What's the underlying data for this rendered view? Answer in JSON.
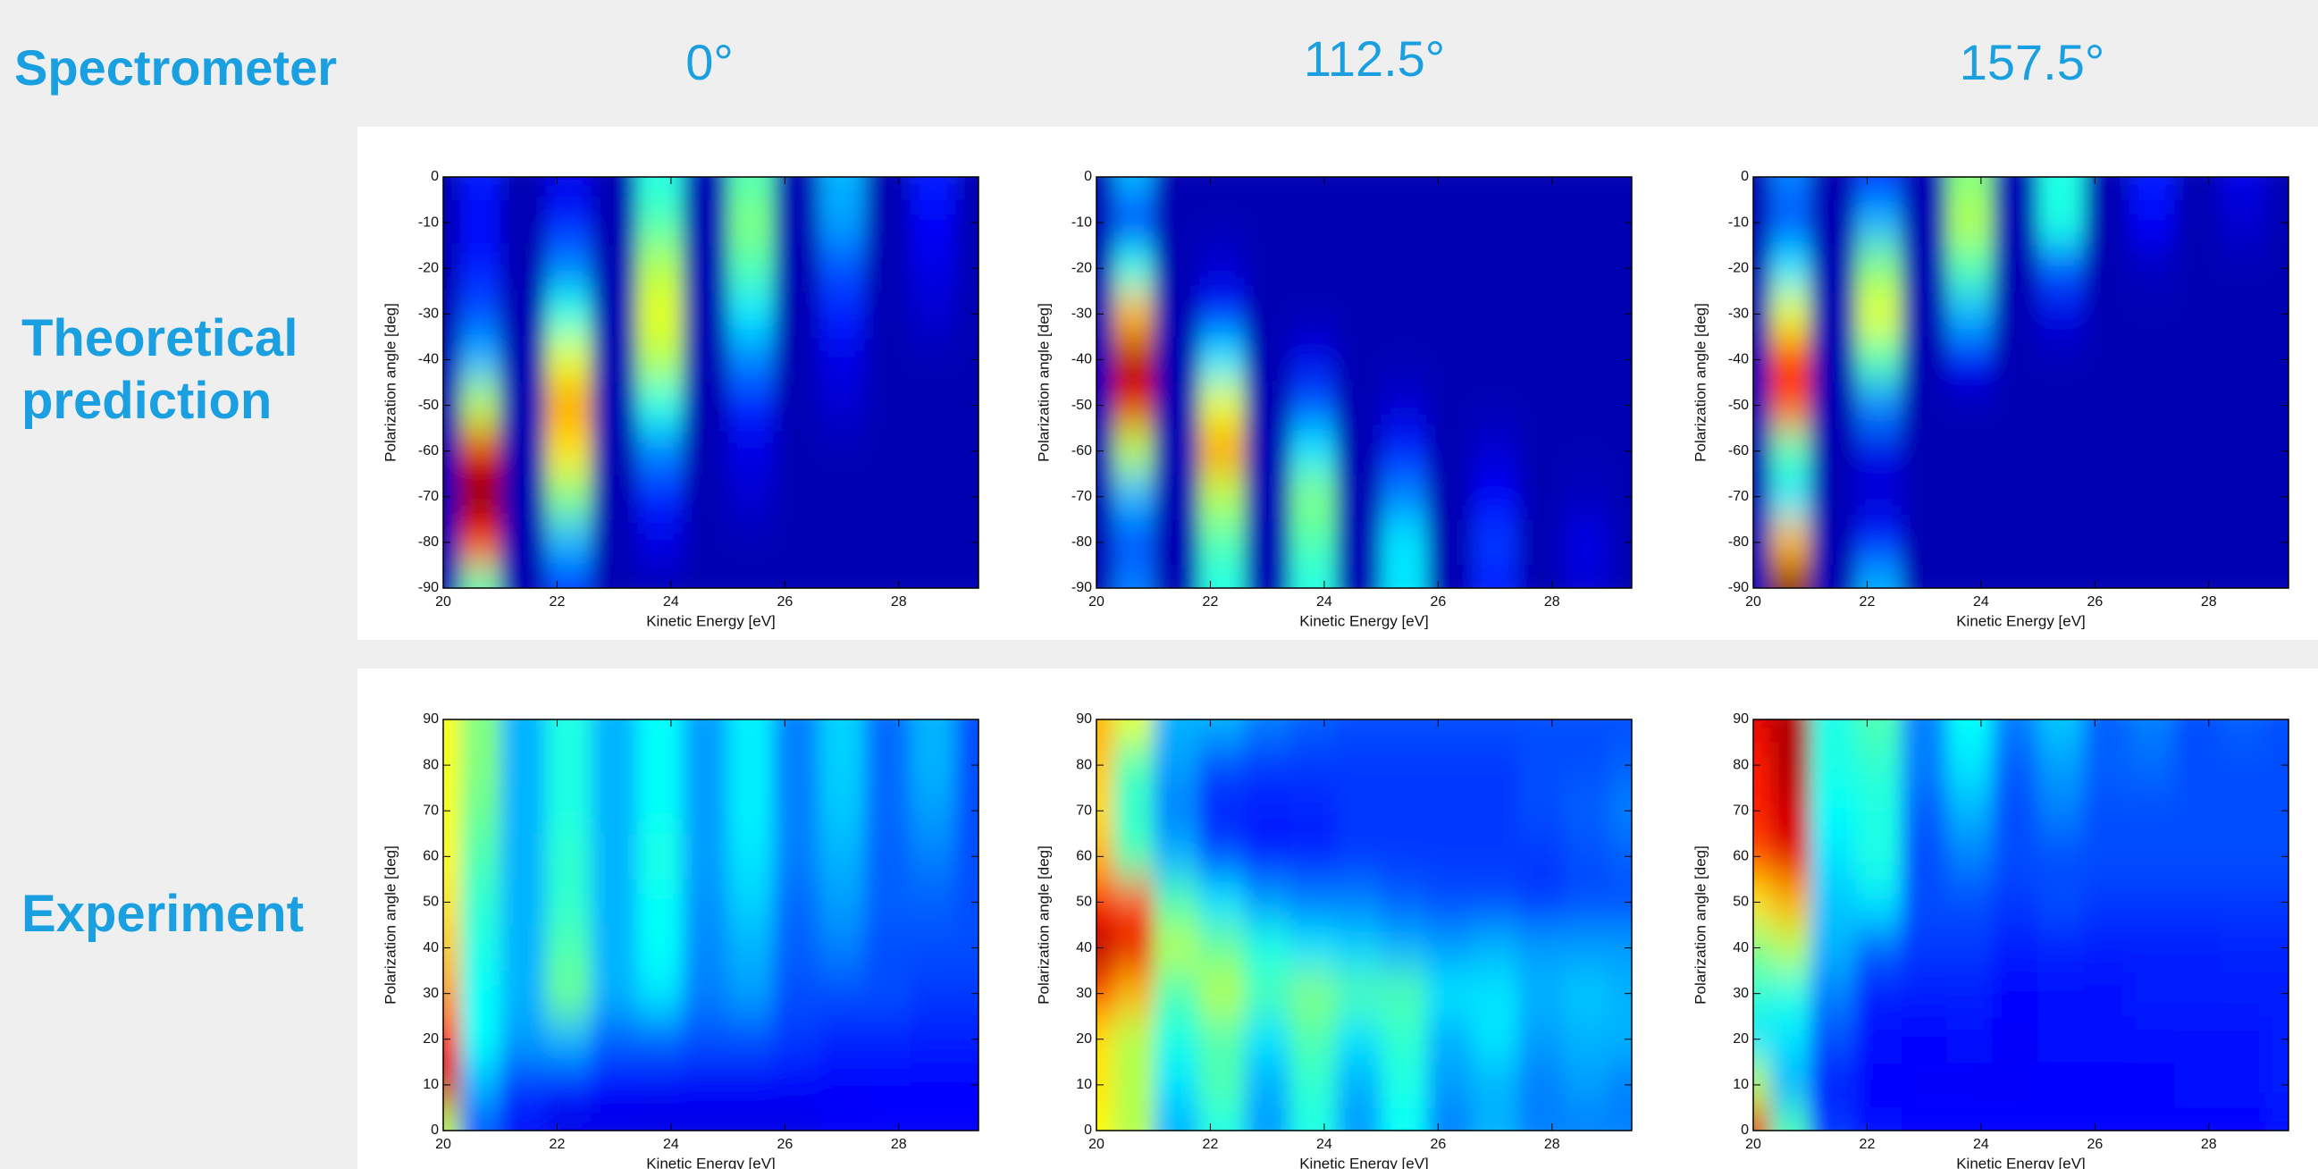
{
  "header": {
    "title": "Spectrometer",
    "columns": [
      "0°",
      "112.5°",
      "157.5°"
    ]
  },
  "rows": [
    "Theoretical prediction",
    "Experiment"
  ],
  "chart_data": [
    {
      "type": "heatmap",
      "colormap": "jet",
      "xlabel": "Kinetic Energy [eV]",
      "ylabel": "Polarization angle [deg]",
      "x": [
        20,
        20.6,
        21.4,
        22.2,
        23,
        23.8,
        24.6,
        25.4,
        26.2,
        27,
        27.8,
        28.6,
        29.4
      ],
      "y": [
        0,
        -10,
        -20,
        -30,
        -40,
        -50,
        -60,
        -70,
        -80,
        -90
      ],
      "values": [
        [
          0.05,
          0.15,
          0.05,
          0.1,
          0.05,
          0.4,
          0.05,
          0.45,
          0.05,
          0.3,
          0.05,
          0.15,
          0.05
        ],
        [
          0.05,
          0.12,
          0.05,
          0.15,
          0.05,
          0.45,
          0.05,
          0.5,
          0.05,
          0.28,
          0.05,
          0.12,
          0.05
        ],
        [
          0.05,
          0.15,
          0.05,
          0.25,
          0.05,
          0.55,
          0.05,
          0.45,
          0.05,
          0.2,
          0.05,
          0.1,
          0.05
        ],
        [
          0.05,
          0.2,
          0.05,
          0.4,
          0.05,
          0.6,
          0.05,
          0.35,
          0.05,
          0.15,
          0.05,
          0.08,
          0.05
        ],
        [
          0.05,
          0.3,
          0.05,
          0.6,
          0.05,
          0.55,
          0.05,
          0.25,
          0.05,
          0.1,
          0.05,
          0.05,
          0.05
        ],
        [
          0.05,
          0.55,
          0.05,
          0.72,
          0.05,
          0.4,
          0.05,
          0.15,
          0.05,
          0.08,
          0.05,
          0.05,
          0.05
        ],
        [
          0.05,
          0.9,
          0.05,
          0.65,
          0.05,
          0.25,
          0.05,
          0.1,
          0.05,
          0.05,
          0.05,
          0.05,
          0.05
        ],
        [
          0.05,
          1,
          0.05,
          0.5,
          0.05,
          0.15,
          0.05,
          0.08,
          0.05,
          0.05,
          0.05,
          0.05,
          0.05
        ],
        [
          0.05,
          0.85,
          0.05,
          0.3,
          0.05,
          0.1,
          0.05,
          0.05,
          0.05,
          0.05,
          0.05,
          0.05,
          0.05
        ],
        [
          0.05,
          0.45,
          0.05,
          0.15,
          0.05,
          0.05,
          0.05,
          0.05,
          0.05,
          0.05,
          0.05,
          0.05,
          0.05
        ]
      ],
      "xlim": [
        20,
        29.4
      ],
      "ylim": [
        -90,
        0
      ],
      "xticks": [
        20,
        22,
        24,
        26,
        28
      ],
      "yticks": [
        0,
        -10,
        -20,
        -30,
        -40,
        -50,
        -60,
        -70,
        -80,
        -90
      ]
    },
    {
      "type": "heatmap",
      "colormap": "jet",
      "xlabel": "Kinetic Energy [eV]",
      "ylabel": "Polarization angle [deg]",
      "x": [
        20,
        20.6,
        21.4,
        22.2,
        23,
        23.8,
        24.6,
        25.4,
        26.2,
        27,
        27.8,
        28.6,
        29.4
      ],
      "y": [
        0,
        -10,
        -20,
        -30,
        -40,
        -50,
        -60,
        -70,
        -80,
        -90
      ],
      "values": [
        [
          0.05,
          0.3,
          0.05,
          0.05,
          0.05,
          0.05,
          0.05,
          0.05,
          0.05,
          0.05,
          0.05,
          0.05,
          0.05
        ],
        [
          0.05,
          0.15,
          0.05,
          0.05,
          0.05,
          0.05,
          0.05,
          0.05,
          0.05,
          0.05,
          0.05,
          0.05,
          0.05
        ],
        [
          0.05,
          0.4,
          0.05,
          0.08,
          0.05,
          0.05,
          0.05,
          0.05,
          0.05,
          0.05,
          0.05,
          0.05,
          0.05
        ],
        [
          0.05,
          0.7,
          0.05,
          0.15,
          0.05,
          0.05,
          0.05,
          0.05,
          0.05,
          0.05,
          0.05,
          0.05,
          0.05
        ],
        [
          0.05,
          0.95,
          0.05,
          0.35,
          0.05,
          0.1,
          0.05,
          0.05,
          0.05,
          0.05,
          0.05,
          0.05,
          0.05
        ],
        [
          0.05,
          0.9,
          0.05,
          0.6,
          0.05,
          0.2,
          0.05,
          0.08,
          0.05,
          0.05,
          0.05,
          0.05,
          0.05
        ],
        [
          0.05,
          0.55,
          0.05,
          0.72,
          0.05,
          0.35,
          0.05,
          0.15,
          0.05,
          0.08,
          0.05,
          0.05,
          0.05
        ],
        [
          0.05,
          0.3,
          0.05,
          0.55,
          0.05,
          0.5,
          0.05,
          0.25,
          0.05,
          0.12,
          0.05,
          0.06,
          0.05
        ],
        [
          0.05,
          0.2,
          0.05,
          0.45,
          0.05,
          0.45,
          0.05,
          0.35,
          0.05,
          0.18,
          0.05,
          0.1,
          0.05
        ],
        [
          0.05,
          0.25,
          0.05,
          0.4,
          0.05,
          0.4,
          0.05,
          0.35,
          0.05,
          0.15,
          0.05,
          0.08,
          0.05
        ]
      ],
      "xlim": [
        20,
        29.4
      ],
      "ylim": [
        -90,
        0
      ],
      "xticks": [
        20,
        22,
        24,
        26,
        28
      ],
      "yticks": [
        0,
        -10,
        -20,
        -30,
        -40,
        -50,
        -60,
        -70,
        -80,
        -90
      ]
    },
    {
      "type": "heatmap",
      "colormap": "jet",
      "xlabel": "Kinetic Energy [eV]",
      "ylabel": "Polarization angle [deg]",
      "x": [
        20,
        20.6,
        21.4,
        22.2,
        23,
        23.8,
        24.6,
        25.4,
        26.2,
        27,
        27.8,
        28.6,
        29.4
      ],
      "y": [
        0,
        -10,
        -20,
        -30,
        -40,
        -50,
        -60,
        -70,
        -80,
        -90
      ],
      "values": [
        [
          0.05,
          0.25,
          0.05,
          0.15,
          0.05,
          0.5,
          0.05,
          0.4,
          0.05,
          0.15,
          0.05,
          0.1,
          0.05
        ],
        [
          0.05,
          0.2,
          0.05,
          0.3,
          0.05,
          0.55,
          0.05,
          0.4,
          0.05,
          0.12,
          0.05,
          0.08,
          0.05
        ],
        [
          0.05,
          0.35,
          0.05,
          0.5,
          0.05,
          0.45,
          0.05,
          0.2,
          0.05,
          0.06,
          0.05,
          0.05,
          0.05
        ],
        [
          0.05,
          0.6,
          0.05,
          0.6,
          0.05,
          0.3,
          0.05,
          0.1,
          0.05,
          0.05,
          0.05,
          0.05,
          0.05
        ],
        [
          0.05,
          0.85,
          0.05,
          0.45,
          0.05,
          0.12,
          0.05,
          0.05,
          0.05,
          0.05,
          0.05,
          0.05,
          0.05
        ],
        [
          0.05,
          0.8,
          0.05,
          0.25,
          0.05,
          0.05,
          0.05,
          0.05,
          0.05,
          0.05,
          0.05,
          0.05,
          0.05
        ],
        [
          0.05,
          0.45,
          0.05,
          0.1,
          0.05,
          0.05,
          0.05,
          0.05,
          0.05,
          0.05,
          0.05,
          0.05,
          0.05
        ],
        [
          0.05,
          0.35,
          0.05,
          0.08,
          0.05,
          0.05,
          0.05,
          0.05,
          0.05,
          0.05,
          0.05,
          0.05,
          0.05
        ],
        [
          0.05,
          0.7,
          0.05,
          0.15,
          0.05,
          0.05,
          0.05,
          0.05,
          0.05,
          0.05,
          0.05,
          0.05,
          0.05
        ],
        [
          0.05,
          1,
          0.05,
          0.3,
          0.05,
          0.05,
          0.05,
          0.05,
          0.05,
          0.05,
          0.05,
          0.05,
          0.05
        ]
      ],
      "xlim": [
        20,
        29.4
      ],
      "ylim": [
        -90,
        0
      ],
      "xticks": [
        20,
        22,
        24,
        26,
        28
      ],
      "yticks": [
        0,
        -10,
        -20,
        -30,
        -40,
        -50,
        -60,
        -70,
        -80,
        -90
      ]
    },
    {
      "type": "heatmap",
      "colormap": "jet",
      "xlabel": "Kinetic Energy [eV]",
      "ylabel": "Polarization angle [deg]",
      "x": [
        20,
        20.6,
        21.4,
        22.2,
        23,
        23.8,
        24.6,
        25.4,
        26.2,
        27,
        27.8,
        28.6,
        29.4
      ],
      "y": [
        90,
        80,
        70,
        60,
        50,
        40,
        30,
        20,
        10,
        0
      ],
      "values": [
        [
          0.62,
          0.5,
          0.3,
          0.4,
          0.3,
          0.38,
          0.28,
          0.36,
          0.25,
          0.33,
          0.23,
          0.3,
          0.2
        ],
        [
          0.62,
          0.5,
          0.3,
          0.4,
          0.3,
          0.38,
          0.28,
          0.36,
          0.25,
          0.33,
          0.23,
          0.3,
          0.2
        ],
        [
          0.62,
          0.48,
          0.3,
          0.4,
          0.3,
          0.38,
          0.28,
          0.36,
          0.25,
          0.32,
          0.23,
          0.28,
          0.2
        ],
        [
          0.63,
          0.45,
          0.3,
          0.42,
          0.3,
          0.4,
          0.28,
          0.35,
          0.25,
          0.3,
          0.22,
          0.25,
          0.2
        ],
        [
          0.65,
          0.42,
          0.3,
          0.42,
          0.3,
          0.38,
          0.27,
          0.33,
          0.23,
          0.28,
          0.22,
          0.22,
          0.2
        ],
        [
          0.68,
          0.4,
          0.3,
          0.45,
          0.3,
          0.38,
          0.26,
          0.3,
          0.22,
          0.25,
          0.2,
          0.2,
          0.2
        ],
        [
          0.72,
          0.38,
          0.3,
          0.48,
          0.3,
          0.35,
          0.25,
          0.28,
          0.2,
          0.2,
          0.2,
          0.18,
          0.18
        ],
        [
          0.85,
          0.38,
          0.28,
          0.3,
          0.22,
          0.22,
          0.2,
          0.2,
          0.18,
          0.16,
          0.16,
          0.15,
          0.15
        ],
        [
          0.92,
          0.3,
          0.18,
          0.15,
          0.13,
          0.12,
          0.12,
          0.12,
          0.12,
          0.12,
          0.13,
          0.13,
          0.13
        ],
        [
          0.55,
          0.2,
          0.12,
          0.1,
          0.1,
          0.1,
          0.1,
          0.1,
          0.1,
          0.12,
          0.12,
          0.12,
          0.12
        ]
      ],
      "xlim": [
        20,
        29.4
      ],
      "ylim": [
        0,
        90
      ],
      "xticks": [
        20,
        22,
        24,
        26,
        28
      ],
      "yticks": [
        0,
        10,
        20,
        30,
        40,
        50,
        60,
        70,
        80,
        90
      ]
    },
    {
      "type": "heatmap",
      "colormap": "jet",
      "xlabel": "Kinetic Energy [eV]",
      "ylabel": "Polarization angle [deg]",
      "x": [
        20,
        20.6,
        21.4,
        22.2,
        23,
        23.8,
        24.6,
        25.4,
        26.2,
        27,
        27.8,
        28.6,
        29.4
      ],
      "y": [
        90,
        80,
        70,
        60,
        50,
        40,
        30,
        20,
        10,
        0
      ],
      "values": [
        [
          0.7,
          0.6,
          0.3,
          0.3,
          0.25,
          0.22,
          0.2,
          0.2,
          0.2,
          0.2,
          0.2,
          0.2,
          0.2
        ],
        [
          0.68,
          0.45,
          0.28,
          0.2,
          0.18,
          0.18,
          0.18,
          0.18,
          0.18,
          0.18,
          0.2,
          0.2,
          0.22
        ],
        [
          0.66,
          0.42,
          0.25,
          0.15,
          0.15,
          0.16,
          0.18,
          0.18,
          0.18,
          0.18,
          0.2,
          0.22,
          0.25
        ],
        [
          0.7,
          0.45,
          0.3,
          0.2,
          0.15,
          0.16,
          0.18,
          0.18,
          0.18,
          0.18,
          0.18,
          0.2,
          0.22
        ],
        [
          0.85,
          0.8,
          0.45,
          0.35,
          0.28,
          0.25,
          0.25,
          0.22,
          0.2,
          0.2,
          0.18,
          0.2,
          0.2
        ],
        [
          0.95,
          0.9,
          0.55,
          0.48,
          0.4,
          0.35,
          0.33,
          0.3,
          0.28,
          0.3,
          0.28,
          0.28,
          0.28
        ],
        [
          0.8,
          0.7,
          0.45,
          0.55,
          0.45,
          0.5,
          0.45,
          0.45,
          0.35,
          0.35,
          0.3,
          0.32,
          0.3
        ],
        [
          0.65,
          0.55,
          0.4,
          0.45,
          0.35,
          0.45,
          0.35,
          0.42,
          0.3,
          0.35,
          0.28,
          0.3,
          0.3
        ],
        [
          0.65,
          0.55,
          0.35,
          0.45,
          0.3,
          0.42,
          0.3,
          0.4,
          0.28,
          0.3,
          0.25,
          0.28,
          0.25
        ],
        [
          0.62,
          0.55,
          0.3,
          0.4,
          0.28,
          0.4,
          0.28,
          0.38,
          0.25,
          0.3,
          0.25,
          0.25,
          0.25
        ]
      ],
      "xlim": [
        20,
        29.4
      ],
      "ylim": [
        0,
        90
      ],
      "xticks": [
        20,
        22,
        24,
        26,
        28
      ],
      "yticks": [
        0,
        10,
        20,
        30,
        40,
        50,
        60,
        70,
        80,
        90
      ]
    },
    {
      "type": "heatmap",
      "colormap": "jet",
      "xlabel": "Kinetic Energy [eV]",
      "ylabel": "Polarization angle [deg]",
      "x": [
        20,
        20.6,
        21.4,
        22.2,
        23,
        23.8,
        24.6,
        25.4,
        26.2,
        27,
        27.8,
        28.6,
        29.4
      ],
      "y": [
        90,
        80,
        70,
        60,
        50,
        40,
        30,
        20,
        10,
        0
      ],
      "values": [
        [
          0.9,
          0.95,
          0.4,
          0.45,
          0.25,
          0.38,
          0.25,
          0.32,
          0.22,
          0.25,
          0.2,
          0.22,
          0.2
        ],
        [
          0.85,
          0.95,
          0.4,
          0.42,
          0.25,
          0.35,
          0.22,
          0.28,
          0.22,
          0.23,
          0.2,
          0.2,
          0.2
        ],
        [
          0.85,
          0.92,
          0.38,
          0.4,
          0.22,
          0.3,
          0.2,
          0.25,
          0.2,
          0.2,
          0.2,
          0.2,
          0.2
        ],
        [
          0.8,
          0.9,
          0.35,
          0.4,
          0.2,
          0.25,
          0.2,
          0.2,
          0.2,
          0.2,
          0.2,
          0.2,
          0.2
        ],
        [
          0.65,
          0.7,
          0.32,
          0.35,
          0.2,
          0.2,
          0.18,
          0.2,
          0.18,
          0.18,
          0.18,
          0.18,
          0.18
        ],
        [
          0.5,
          0.55,
          0.3,
          0.22,
          0.18,
          0.18,
          0.15,
          0.16,
          0.15,
          0.15,
          0.15,
          0.16,
          0.16
        ],
        [
          0.42,
          0.4,
          0.25,
          0.15,
          0.15,
          0.15,
          0.13,
          0.14,
          0.14,
          0.15,
          0.15,
          0.15,
          0.15
        ],
        [
          0.35,
          0.35,
          0.2,
          0.14,
          0.13,
          0.14,
          0.12,
          0.14,
          0.14,
          0.14,
          0.14,
          0.14,
          0.15
        ],
        [
          0.55,
          0.3,
          0.15,
          0.13,
          0.12,
          0.12,
          0.12,
          0.13,
          0.13,
          0.13,
          0.14,
          0.14,
          0.15
        ],
        [
          0.9,
          0.45,
          0.18,
          0.14,
          0.13,
          0.13,
          0.13,
          0.13,
          0.13,
          0.13,
          0.13,
          0.13,
          0.14
        ]
      ],
      "xlim": [
        20,
        29.4
      ],
      "ylim": [
        0,
        90
      ],
      "xticks": [
        20,
        22,
        24,
        26,
        28
      ],
      "yticks": [
        0,
        10,
        20,
        30,
        40,
        50,
        60,
        70,
        80,
        90
      ]
    }
  ]
}
